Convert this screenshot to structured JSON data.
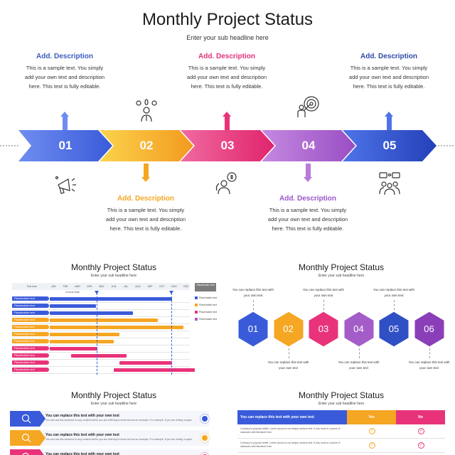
{
  "header": {
    "title": "Monthly Project Status",
    "subtitle": "Enter your sub headline here"
  },
  "timeline": {
    "steps": [
      {
        "number": "01",
        "color": "#3a5bd9",
        "desc_title": "Add. Description",
        "desc_color": "#3a5bbf",
        "desc_body": "This is a sample text. You simply add your own text and description here. This text is fully editable.",
        "icon": "megaphone-icon"
      },
      {
        "number": "02",
        "color": "#f5a623",
        "desc_title": "Add. Description",
        "desc_color": "#f5a623",
        "desc_body": "This is a sample text. You simply add your own text and description here. This text is fully editable.",
        "icon": "idea-person-icon"
      },
      {
        "number": "03",
        "color": "#e8337a",
        "desc_title": "Add. Description",
        "desc_color": "#e0337a",
        "desc_body": "This is a sample text. You simply add your own text and description here. This text is fully editable.",
        "icon": "money-person-icon"
      },
      {
        "number": "04",
        "color": "#a45dc8",
        "desc_title": "Add. Description",
        "desc_color": "#9a55c8",
        "desc_body": "This is a sample text. You simply add your own text and description here. This text is fully editable.",
        "icon": "target-person-icon"
      },
      {
        "number": "05",
        "color": "#2f4fc4",
        "desc_title": "Add. Description",
        "desc_color": "#2e4aa8",
        "desc_body": "This is a sample text. You simply add your own text and description here. This text is fully editable.",
        "icon": "team-chat-icon"
      }
    ]
  },
  "thumb_gantt": {
    "title": "Monthly Project Status",
    "subtitle": "Enter your sub headline here",
    "col_header": "Text here",
    "current_date": "Current Date",
    "months": [
      "JAN",
      "FEB",
      "MAR",
      "APR",
      "MAY",
      "JUN",
      "JUL",
      "AUG",
      "SEP",
      "OCT",
      "NOV",
      "DEC"
    ],
    "legend_header": "Placeholder text",
    "legend": [
      {
        "label": "Placeholder text",
        "color": "#3a5bd9"
      },
      {
        "label": "Placeholder text",
        "color": "#f5a623"
      },
      {
        "label": "Placeholder text",
        "color": "#e8337a"
      },
      {
        "label": "Placeholder text",
        "color": "#a45dc8"
      }
    ],
    "rows": [
      {
        "label": "Placeholder text",
        "color": "#3a5bd9"
      },
      {
        "label": "Placeholder text",
        "color": "#3a5bd9"
      },
      {
        "label": "Placeholder text",
        "color": "#3a5bd9"
      },
      {
        "label": "Placeholder text",
        "color": "#f5a623"
      },
      {
        "label": "Placeholder text",
        "color": "#f5a623"
      },
      {
        "label": "Placeholder text",
        "color": "#f5a623"
      },
      {
        "label": "Placeholder text",
        "color": "#f5a623"
      },
      {
        "label": "Placeholder text",
        "color": "#e8337a"
      },
      {
        "label": "Placeholder text",
        "color": "#e8337a"
      },
      {
        "label": "Placeholder text",
        "color": "#e8337a"
      },
      {
        "label": "Placeholder text",
        "color": "#e8337a"
      }
    ]
  },
  "thumb_hex": {
    "title": "Monthly Project Status",
    "subtitle": "Enter your sub headline here",
    "items": [
      {
        "number": "01",
        "color": "#3a5bd9",
        "caption": "You can replace this text with your own text"
      },
      {
        "number": "02",
        "color": "#f5a623",
        "caption": "You can replace this text with your own text"
      },
      {
        "number": "03",
        "color": "#e8337a",
        "caption": "You can replace this text with your own text"
      },
      {
        "number": "04",
        "color": "#a45dc8",
        "caption": "You can replace this text with your own text"
      },
      {
        "number": "05",
        "color": "#2f4fc4",
        "caption": "You can replace this text with your own text"
      },
      {
        "number": "06",
        "color": "#8a3fb8",
        "caption": "You can replace this text with your own text"
      }
    ]
  },
  "thumb_list": {
    "title": "Monthly Project Status",
    "subtitle": "Enter your sub headline here",
    "rows": [
      {
        "title": "You can replace this text with your own text",
        "text": "You can use this sentence in any content where you are referring to some text as an example. For example, if you are writing a paper",
        "color": "#3a5bd9"
      },
      {
        "title": "You can replace this text with your own text",
        "text": "You can use this sentence in any content where you are referring to some text as an example. For example, if you are writing a paper",
        "color": "#f5a623"
      },
      {
        "title": "You can replace this text with your own text",
        "text": "You can use this sentence in any content where you are referring to some text as an example. For example, if you are writing a paper",
        "color": "#e8337a"
      }
    ]
  },
  "thumb_table": {
    "title": "Monthly Project Status",
    "subtitle": "Enter your sub headline here",
    "header": "You can replace this text with your own text",
    "yes": "Yes",
    "no": "No",
    "rows": [
      "Contrary to popular belief, Lorem Ipsum is not simply random text. It has roots in a piece of classical Latin literature from",
      "Contrary to popular belief, Lorem Ipsum is not simply random text. It has roots in a piece of classical Latin literature from"
    ]
  }
}
